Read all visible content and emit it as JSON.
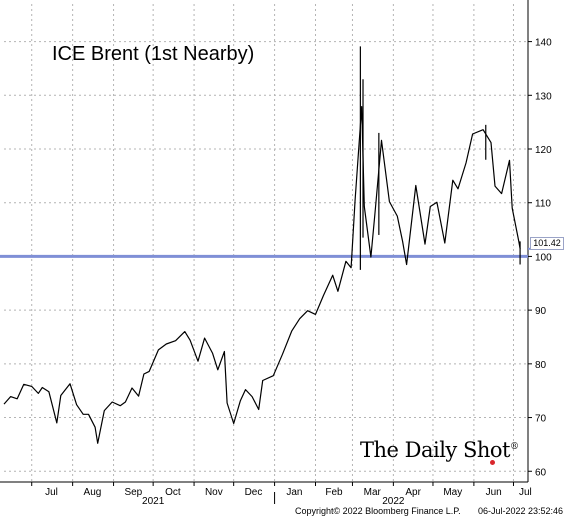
{
  "chart_data": {
    "type": "line",
    "title": "ICE Brent (1st Nearby)",
    "y_ticks": [
      60,
      70,
      80,
      90,
      100,
      110,
      120,
      130,
      140
    ],
    "ylim": [
      58,
      147
    ],
    "xlim": [
      "2021-06-10",
      "2022-07-12"
    ],
    "month_labels": [
      {
        "label": "Jul",
        "date": "2021-07-16"
      },
      {
        "label": "Aug",
        "date": "2021-08-16"
      },
      {
        "label": "Sep",
        "date": "2021-09-16"
      },
      {
        "label": "Oct",
        "date": "2021-10-16"
      },
      {
        "label": "Nov",
        "date": "2021-11-16"
      },
      {
        "label": "Dec",
        "date": "2021-12-16"
      },
      {
        "label": "Jan",
        "date": "2022-01-16"
      },
      {
        "label": "Feb",
        "date": "2022-02-15"
      },
      {
        "label": "Mar",
        "date": "2022-03-16"
      },
      {
        "label": "Apr",
        "date": "2022-04-16"
      },
      {
        "label": "May",
        "date": "2022-05-16"
      },
      {
        "label": "Jun",
        "date": "2022-06-16"
      },
      {
        "label": "Jul",
        "date": "2022-07-10"
      }
    ],
    "year_labels": [
      {
        "label": "2021",
        "date": "2021-10-01"
      },
      {
        "label": "2022",
        "date": "2022-04-01"
      }
    ],
    "reference_line": {
      "value": 100,
      "color": "#7f8fd6"
    },
    "last_value": {
      "value": 101.42,
      "label": "101.42"
    },
    "grid": true,
    "series": [
      {
        "color": "#000000",
        "points": [
          [
            "2021-06-10",
            72.5
          ],
          [
            "2021-06-15",
            73.9
          ],
          [
            "2021-06-20",
            73.5
          ],
          [
            "2021-06-25",
            76.2
          ],
          [
            "2021-07-01",
            75.8
          ],
          [
            "2021-07-06",
            74.5
          ],
          [
            "2021-07-09",
            75.6
          ],
          [
            "2021-07-14",
            74.8
          ],
          [
            "2021-07-20",
            69.0
          ],
          [
            "2021-07-23",
            74.1
          ],
          [
            "2021-07-30",
            76.3
          ],
          [
            "2021-08-04",
            72.4
          ],
          [
            "2021-08-09",
            70.6
          ],
          [
            "2021-08-13",
            70.6
          ],
          [
            "2021-08-18",
            68.2
          ],
          [
            "2021-08-20",
            65.2
          ],
          [
            "2021-08-25",
            71.3
          ],
          [
            "2021-08-31",
            72.9
          ],
          [
            "2021-09-06",
            72.2
          ],
          [
            "2021-09-10",
            72.9
          ],
          [
            "2021-09-15",
            75.5
          ],
          [
            "2021-09-20",
            74.0
          ],
          [
            "2021-09-24",
            78.1
          ],
          [
            "2021-09-28",
            78.6
          ],
          [
            "2021-10-05",
            82.6
          ],
          [
            "2021-10-11",
            83.7
          ],
          [
            "2021-10-18",
            84.3
          ],
          [
            "2021-10-25",
            86.0
          ],
          [
            "2021-10-29",
            84.4
          ],
          [
            "2021-11-04",
            80.5
          ],
          [
            "2021-11-09",
            84.8
          ],
          [
            "2021-11-15",
            82.0
          ],
          [
            "2021-11-19",
            78.9
          ],
          [
            "2021-11-24",
            82.3
          ],
          [
            "2021-11-26",
            72.7
          ],
          [
            "2021-12-01",
            68.9
          ],
          [
            "2021-12-06",
            73.1
          ],
          [
            "2021-12-10",
            75.2
          ],
          [
            "2021-12-15",
            73.9
          ],
          [
            "2021-12-20",
            71.5
          ],
          [
            "2021-12-23",
            76.9
          ],
          [
            "2021-12-31",
            77.8
          ],
          [
            "2022-01-07",
            81.8
          ],
          [
            "2022-01-14",
            86.1
          ],
          [
            "2022-01-20",
            88.4
          ],
          [
            "2022-01-26",
            89.9
          ],
          [
            "2022-02-01",
            89.2
          ],
          [
            "2022-02-07",
            92.7
          ],
          [
            "2022-02-14",
            96.5
          ],
          [
            "2022-02-18",
            93.5
          ],
          [
            "2022-02-24",
            99.1
          ],
          [
            "2022-02-28",
            97.9
          ],
          [
            "2022-03-03",
            110.5
          ],
          [
            "2022-03-08",
            127.9
          ],
          [
            "2022-03-10",
            109.3
          ],
          [
            "2022-03-15",
            99.9
          ],
          [
            "2022-03-18",
            107.9
          ],
          [
            "2022-03-23",
            121.6
          ],
          [
            "2022-03-29",
            110.2
          ],
          [
            "2022-04-04",
            107.5
          ],
          [
            "2022-04-08",
            102.8
          ],
          [
            "2022-04-11",
            98.5
          ],
          [
            "2022-04-18",
            113.2
          ],
          [
            "2022-04-25",
            102.3
          ],
          [
            "2022-04-29",
            109.3
          ],
          [
            "2022-05-04",
            110.1
          ],
          [
            "2022-05-10",
            102.5
          ],
          [
            "2022-05-16",
            114.2
          ],
          [
            "2022-05-20",
            112.6
          ],
          [
            "2022-05-26",
            117.4
          ],
          [
            "2022-05-31",
            122.8
          ],
          [
            "2022-06-08",
            123.6
          ],
          [
            "2022-06-14",
            121.2
          ],
          [
            "2022-06-17",
            113.1
          ],
          [
            "2022-06-22",
            111.7
          ],
          [
            "2022-06-28",
            117.9
          ],
          [
            "2022-06-30",
            109.0
          ],
          [
            "2022-07-05",
            102.8
          ],
          [
            "2022-07-06",
            101.42
          ]
        ]
      }
    ],
    "volatility_spikes": [
      [
        "2022-03-07",
        97.5,
        139.1
      ],
      [
        "2022-03-09",
        103.5,
        133.0
      ],
      [
        "2022-03-21",
        104.0,
        123.0
      ],
      [
        "2022-06-10",
        118.0,
        124.5
      ],
      [
        "2022-07-06",
        98.5,
        102.8
      ]
    ]
  },
  "watermark": "The Daily Shot",
  "copyright": "Copyright© 2022 Bloomberg Finance L.P.",
  "timestamp": "06-Jul-2022 23:52:46"
}
